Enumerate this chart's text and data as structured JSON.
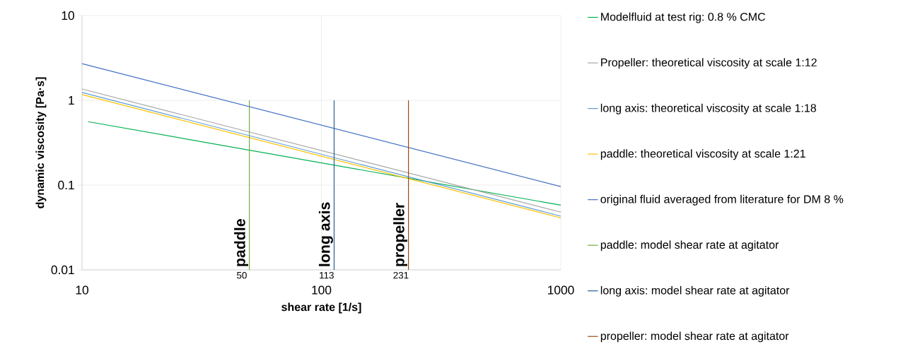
{
  "chart_data": {
    "type": "line",
    "xlabel": "shear rate [1/s]",
    "ylabel": "dynamic viscosity [Pa·s]",
    "log": "xy",
    "grid": true,
    "legend": "right",
    "xlim": [
      10,
      1000
    ],
    "ylim": [
      0.01,
      10
    ],
    "xticks": [
      10,
      100,
      1000
    ],
    "yticks": [
      0.01,
      0.1,
      1,
      10
    ],
    "series": [
      {
        "name": "Modelfluid at test rig: 0.8 % CMC",
        "color": "#00b050",
        "x": [
          10.6,
          1000
        ],
        "values": [
          0.56,
          0.058
        ]
      },
      {
        "name": "Propeller: theoretical viscosity at scale 1:12",
        "color": "#a5a5a5",
        "x": [
          10,
          1000
        ],
        "values": [
          1.36,
          0.048
        ]
      },
      {
        "name": "long axis: theoretical viscosity at scale 1:18",
        "color": "#5b9bd5",
        "x": [
          10,
          1000
        ],
        "values": [
          1.24,
          0.043
        ]
      },
      {
        "name": "paddle: theoretical viscosity at scale 1:21",
        "color": "#ffc000",
        "x": [
          10,
          1000
        ],
        "values": [
          1.17,
          0.041
        ]
      },
      {
        "name": "original fluid averaged from literature for DM 8 %",
        "color": "#4472c4",
        "x": [
          10,
          1000
        ],
        "values": [
          2.71,
          0.096
        ]
      },
      {
        "name": "paddle: model shear rate at agitator",
        "color": "#70ad47",
        "x": [
          50,
          50
        ],
        "values": [
          0.01,
          1
        ]
      },
      {
        "name": "long axis: model shear rate at agitator",
        "color": "#255e91",
        "x": [
          113,
          113
        ],
        "values": [
          0.01,
          1
        ]
      },
      {
        "name": "propeller: model shear rate at agitator",
        "color": "#9e480e",
        "x": [
          231,
          231
        ],
        "values": [
          0.01,
          1
        ]
      }
    ],
    "annotations": [
      {
        "text": "paddle",
        "x": 50,
        "y": 0.011
      },
      {
        "text": "long axis",
        "x": 113,
        "y": 0.011
      },
      {
        "text": "propeller",
        "x": 231,
        "y": 0.011
      },
      {
        "text": "50",
        "x": 50,
        "y": 0.01
      },
      {
        "text": "113",
        "x": 113,
        "y": 0.01
      },
      {
        "text": "231",
        "x": 231,
        "y": 0.01
      }
    ]
  }
}
